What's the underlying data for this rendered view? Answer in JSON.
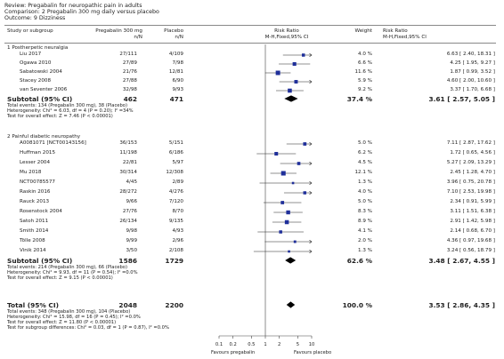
{
  "header": {
    "review": "Review:  Pregabalin for neuropathic pain in adults",
    "comparison": "Comparison:  2 Pregabalin 300 mg daily versus placebo",
    "outcome": "Outcome:  9 Dizziness"
  },
  "columns": {
    "study": "Study or subgroup",
    "exp": "Pregabalin 300 mg",
    "exp_sub": "n/N",
    "ctl": "Placebo",
    "ctl_sub": "n/N",
    "rr": "Risk Ratio",
    "rr_sub": "M-H,Fixed,95% CI",
    "weight": "Weight",
    "rr2": "Risk Ratio",
    "rr2_sub": "M-H,Fixed,95% CI"
  },
  "chart_data": {
    "type": "forest",
    "x_scale": "log",
    "xlim": [
      0.1,
      10
    ],
    "ticks": [
      "0.1",
      "0.2",
      "0.5",
      "1",
      "2",
      "5",
      "10"
    ],
    "xlabel_left": "Favours pregabalin",
    "xlabel_right": "Favours placebo",
    "subgroups": [
      {
        "name": "1 Postherpetic neuralgia",
        "studies": [
          {
            "name": "Liu 2017",
            "exp": "27/111",
            "ctl": "4/109",
            "weight": "4.0 %",
            "ci_text": "6.63 [ 2.40, 18.31 ]",
            "rr": 6.63,
            "lo": 2.4,
            "hi": 18.31
          },
          {
            "name": "Ogawa 2010",
            "exp": "27/89",
            "ctl": "7/98",
            "weight": "6.6 %",
            "ci_text": "4.25 [ 1.95, 9.27 ]",
            "rr": 4.25,
            "lo": 1.95,
            "hi": 9.27
          },
          {
            "name": "Sabatowski 2004",
            "exp": "21/76",
            "ctl": "12/81",
            "weight": "11.6 %",
            "ci_text": "1.87 [ 0.99, 3.52 ]",
            "rr": 1.87,
            "lo": 0.99,
            "hi": 3.52
          },
          {
            "name": "Stacey 2008",
            "exp": "27/88",
            "ctl": "6/90",
            "weight": "5.9 %",
            "ci_text": "4.60 [ 2.00, 10.60 ]",
            "rr": 4.6,
            "lo": 2.0,
            "hi": 10.6
          },
          {
            "name": "van Seventer 2006",
            "exp": "32/98",
            "ctl": "9/93",
            "weight": "9.2 %",
            "ci_text": "3.37 [ 1.70, 6.68 ]",
            "rr": 3.37,
            "lo": 1.7,
            "hi": 6.68
          }
        ],
        "subtotal": {
          "label": "Subtotal (95% CI)",
          "exp": "462",
          "ctl": "471",
          "weight": "37.4 %",
          "ci_text": "3.61 [ 2.57, 5.05 ]",
          "rr": 3.61,
          "lo": 2.57,
          "hi": 5.05
        },
        "stats": [
          "Total events: 134 (Pregabalin 300 mg), 38 (Placebo)",
          "Heterogeneity: Chi² = 6.03, df = 4 (P = 0.20); I² =34%",
          "Test for overall effect: Z = 7.46 (P < 0.00001)"
        ]
      },
      {
        "name": "2 Painful diabetic neuropathy",
        "studies": [
          {
            "name": "A0081071 [NCT00143156]",
            "exp": "36/153",
            "ctl": "5/151",
            "weight": "5.0 %",
            "ci_text": "7.11 [ 2.87, 17.62 ]",
            "rr": 7.11,
            "lo": 2.87,
            "hi": 17.62
          },
          {
            "name": "Huffman 2015",
            "exp": "11/198",
            "ctl": "6/186",
            "weight": "6.2 %",
            "ci_text": "1.72 [ 0.65, 4.56 ]",
            "rr": 1.72,
            "lo": 0.65,
            "hi": 4.56
          },
          {
            "name": "Lesser 2004",
            "exp": "22/81",
            "ctl": "5/97",
            "weight": "4.5 %",
            "ci_text": "5.27 [ 2.09, 13.29 ]",
            "rr": 5.27,
            "lo": 2.09,
            "hi": 13.29
          },
          {
            "name": "Mu 2018",
            "exp": "30/314",
            "ctl": "12/308",
            "weight": "12.1 %",
            "ci_text": "2.45 [ 1.28, 4.70 ]",
            "rr": 2.45,
            "lo": 1.28,
            "hi": 4.7
          },
          {
            "name": "NCT00785577",
            "exp": "4/45",
            "ctl": "2/89",
            "weight": "1.3 %",
            "ci_text": "3.96 [ 0.75, 20.78 ]",
            "rr": 3.96,
            "lo": 0.75,
            "hi": 20.78
          },
          {
            "name": "Raskin 2016",
            "exp": "28/272",
            "ctl": "4/276",
            "weight": "4.0 %",
            "ci_text": "7.10 [ 2.53, 19.98 ]",
            "rr": 7.1,
            "lo": 2.53,
            "hi": 19.98
          },
          {
            "name": "Rauck 2013",
            "exp": "9/66",
            "ctl": "7/120",
            "weight": "5.0 %",
            "ci_text": "2.34 [ 0.91, 5.99 ]",
            "rr": 2.34,
            "lo": 0.91,
            "hi": 5.99
          },
          {
            "name": "Rosenstock 2004",
            "exp": "27/76",
            "ctl": "8/70",
            "weight": "8.3 %",
            "ci_text": "3.11 [ 1.51, 6.38 ]",
            "rr": 3.11,
            "lo": 1.51,
            "hi": 6.38
          },
          {
            "name": "Satoh 2011",
            "exp": "26/134",
            "ctl": "9/135",
            "weight": "8.9 %",
            "ci_text": "2.91 [ 1.42, 5.98 ]",
            "rr": 2.91,
            "lo": 1.42,
            "hi": 5.98
          },
          {
            "name": "Smith 2014",
            "exp": "9/98",
            "ctl": "4/93",
            "weight": "4.1 %",
            "ci_text": "2.14 [ 0.68, 6.70 ]",
            "rr": 2.14,
            "lo": 0.68,
            "hi": 6.7
          },
          {
            "name": "Tölle 2008",
            "exp": "9/99",
            "ctl": "2/96",
            "weight": "2.0 %",
            "ci_text": "4.36 [ 0.97, 19.68 ]",
            "rr": 4.36,
            "lo": 0.97,
            "hi": 19.68
          },
          {
            "name": "Vinik 2014",
            "exp": "3/50",
            "ctl": "2/108",
            "weight": "1.3 %",
            "ci_text": "3.24 [ 0.56, 18.79 ]",
            "rr": 3.24,
            "lo": 0.56,
            "hi": 18.79
          }
        ],
        "subtotal": {
          "label": "Subtotal (95% CI)",
          "exp": "1586",
          "ctl": "1729",
          "weight": "62.6 %",
          "ci_text": "3.48 [ 2.67, 4.55 ]",
          "rr": 3.48,
          "lo": 2.67,
          "hi": 4.55
        },
        "stats": [
          "Total events: 214 (Pregabalin 300 mg), 66 (Placebo)",
          "Heterogeneity: Chi² = 9.93, df = 11 (P = 0.54); I² =0.0%",
          "Test for overall effect: Z = 9.15 (P < 0.00001)"
        ]
      }
    ],
    "total": {
      "label": "Total (95% CI)",
      "exp": "2048",
      "ctl": "2200",
      "weight": "100.0 %",
      "ci_text": "3.53 [ 2.86, 4.35 ]",
      "rr": 3.53,
      "lo": 2.86,
      "hi": 4.35,
      "stats": [
        "Total events: 348 (Pregabalin 300 mg), 104 (Placebo)",
        "Heterogeneity: Chi² = 15.98, df = 16 (P = 0.45); I² =0.0%",
        "Test for overall effect: Z = 11.80 (P < 0.00001)",
        "Test for subgroup differences: Chi² = 0.03, df = 1 (P = 0.87), I² =0.0%"
      ]
    },
    "colors": {
      "square": "#1f2f9a",
      "diamond": "#000000",
      "line": "#222222",
      "axis": "#444444"
    }
  }
}
